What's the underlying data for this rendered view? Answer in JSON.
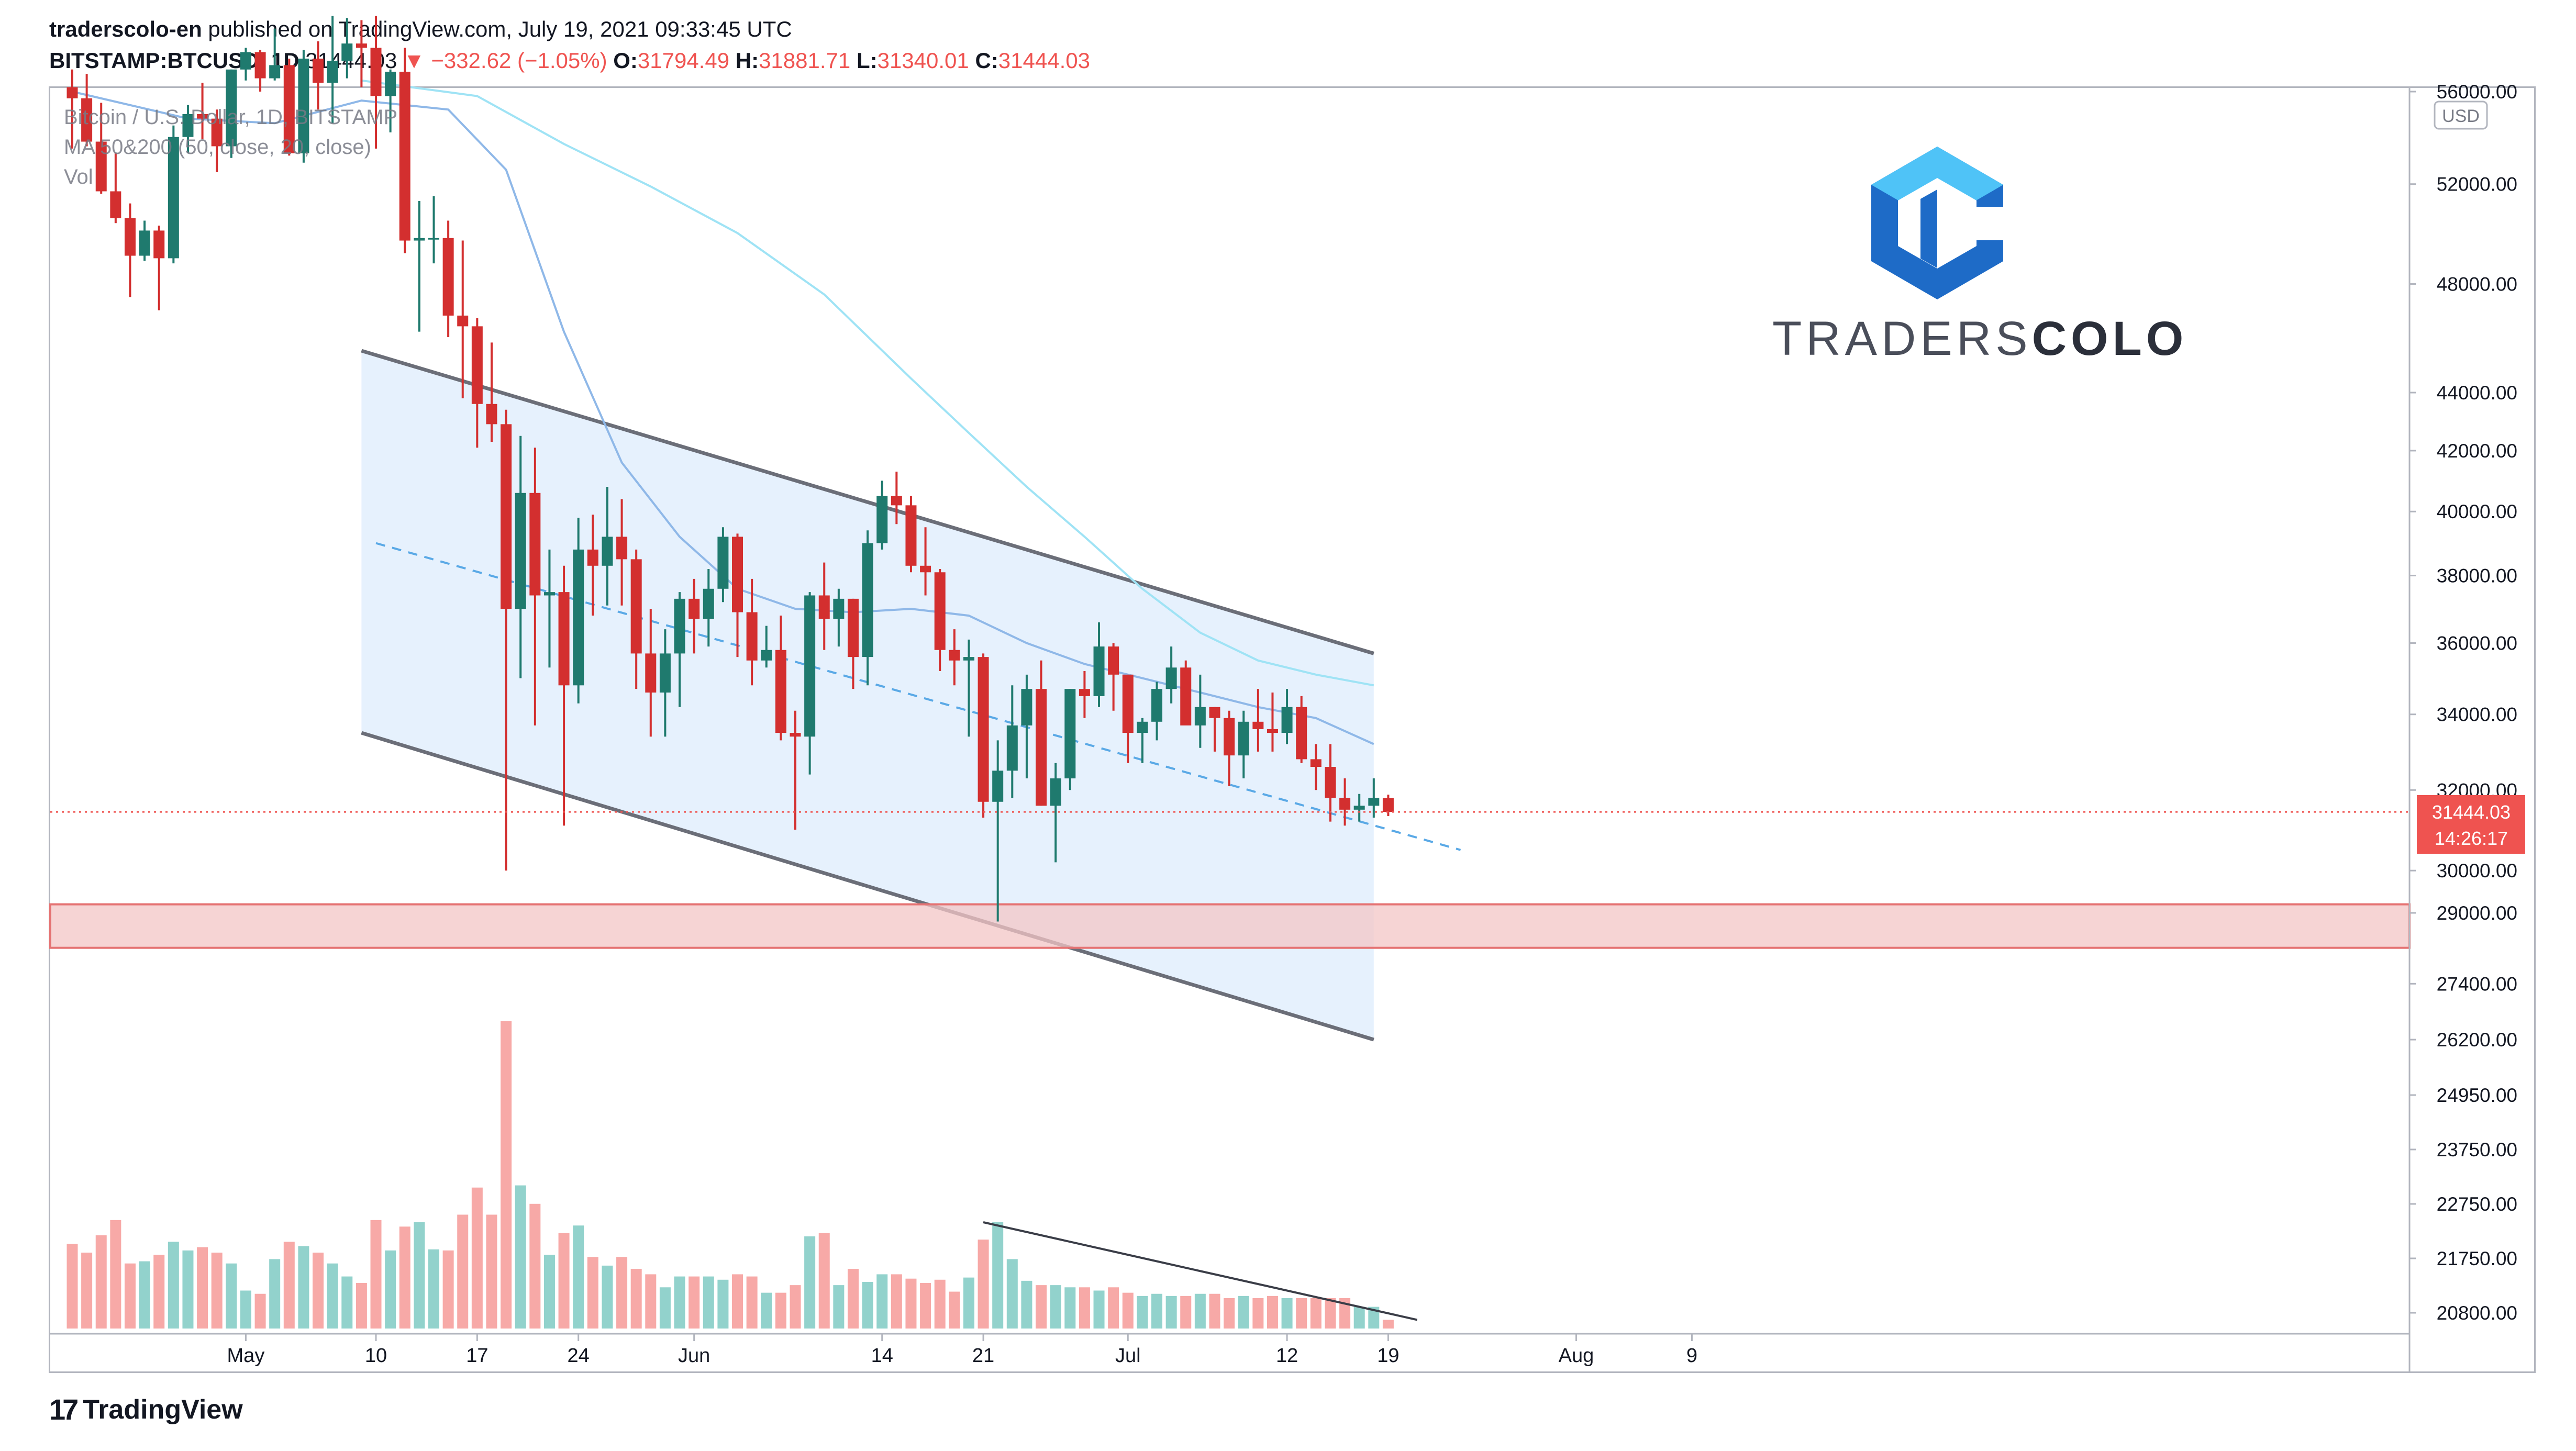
{
  "header": {
    "publisher": "traderscolo-en",
    "published_text": "published on TradingView.com, July 19, 2021 09:33:45 UTC",
    "symbol": "BITSTAMP:BTCUSD, 1D",
    "last": "31444.03",
    "change": "▼ −332.62 (−1.05%)",
    "o_label": "O:",
    "o": "31794.49",
    "h_label": "H:",
    "h": "31881.71",
    "l_label": "L:",
    "l": "31340.01",
    "c_label": "C:",
    "c": "31444.03"
  },
  "legend": {
    "title": "Bitcoin / U.S. Dollar, 1D, BITSTAMP",
    "ma": "MA 50&200 (50, close, 20, close)",
    "vol": "Vol"
  },
  "brand": {
    "name_light": "TRADERS",
    "name_bold": "COLO"
  },
  "price_axis": {
    "currency": "USD",
    "ticks": [
      "56000.00",
      "52000.00",
      "48000.00",
      "44000.00",
      "42000.00",
      "40000.00",
      "38000.00",
      "36000.00",
      "34000.00",
      "32000.00",
      "30000.00",
      "29000.00",
      "27400.00",
      "26200.00",
      "24950.00",
      "23750.00",
      "22750.00",
      "21750.00",
      "20800.00"
    ],
    "last_price": "31444.03",
    "countdown": "14:26:17"
  },
  "time_axis": {
    "ticks": [
      "May",
      "10",
      "17",
      "24",
      "Jun",
      "14",
      "21",
      "Jul",
      "12",
      "19",
      "Aug",
      "9"
    ]
  },
  "footer": {
    "logo_mark": "17",
    "logo_text": "TradingView"
  },
  "colors": {
    "up": "#26a69a",
    "down": "#ef5350",
    "up_dark": "#1f7a6e",
    "down_dark": "#d32f2f",
    "channel_fill": "#e3f0fd",
    "zone_fill": "#f3c6c6",
    "ma50": "#8fb8e8",
    "ma200": "#9fe3f5"
  },
  "chart_data": {
    "type": "candlestick",
    "symbol": "BITSTAMP:BTCUSD",
    "interval": "1D",
    "y_scale": "log",
    "ylim": [
      25800,
      57000
    ],
    "dates": [
      "2021-04-19",
      "2021-04-20",
      "2021-04-21",
      "2021-04-22",
      "2021-04-23",
      "2021-04-24",
      "2021-04-25",
      "2021-04-26",
      "2021-04-27",
      "2021-04-28",
      "2021-04-29",
      "2021-04-30",
      "2021-05-01",
      "2021-05-02",
      "2021-05-03",
      "2021-05-04",
      "2021-05-05",
      "2021-05-06",
      "2021-05-07",
      "2021-05-08",
      "2021-05-09",
      "2021-05-10",
      "2021-05-11",
      "2021-05-12",
      "2021-05-13",
      "2021-05-14",
      "2021-05-15",
      "2021-05-16",
      "2021-05-17",
      "2021-05-18",
      "2021-05-19",
      "2021-05-20",
      "2021-05-21",
      "2021-05-22",
      "2021-05-23",
      "2021-05-24",
      "2021-05-25",
      "2021-05-26",
      "2021-05-27",
      "2021-05-28",
      "2021-05-29",
      "2021-05-30",
      "2021-05-31",
      "2021-06-01",
      "2021-06-02",
      "2021-06-03",
      "2021-06-04",
      "2021-06-05",
      "2021-06-06",
      "2021-06-07",
      "2021-06-08",
      "2021-06-09",
      "2021-06-10",
      "2021-06-11",
      "2021-06-12",
      "2021-06-13",
      "2021-06-14",
      "2021-06-15",
      "2021-06-16",
      "2021-06-17",
      "2021-06-18",
      "2021-06-19",
      "2021-06-20",
      "2021-06-21",
      "2021-06-22",
      "2021-06-23",
      "2021-06-24",
      "2021-06-25",
      "2021-06-26",
      "2021-06-27",
      "2021-06-28",
      "2021-06-29",
      "2021-06-30",
      "2021-07-01",
      "2021-07-02",
      "2021-07-03",
      "2021-07-04",
      "2021-07-05",
      "2021-07-06",
      "2021-07-07",
      "2021-07-08",
      "2021-07-09",
      "2021-07-10",
      "2021-07-11",
      "2021-07-12",
      "2021-07-13",
      "2021-07-14",
      "2021-07-15",
      "2021-07-16",
      "2021-07-17",
      "2021-07-18",
      "2021-07-19"
    ],
    "ohlc": [
      [
        56200,
        57000,
        53500,
        55700
      ],
      [
        55700,
        56800,
        53600,
        53800
      ],
      [
        53800,
        55500,
        51600,
        51700
      ],
      [
        51700,
        53300,
        50400,
        50600
      ],
      [
        50600,
        51200,
        47500,
        49100
      ],
      [
        49100,
        50500,
        48900,
        50100
      ],
      [
        50100,
        50300,
        47000,
        49000
      ],
      [
        49000,
        54500,
        48800,
        54000
      ],
      [
        54000,
        55400,
        53300,
        55000
      ],
      [
        55000,
        56400,
        53900,
        54800
      ],
      [
        54800,
        55200,
        52500,
        53600
      ],
      [
        53600,
        57000,
        53100,
        57000
      ],
      [
        57000,
        58000,
        56500,
        57800
      ],
      [
        57800,
        57900,
        56000,
        56600
      ],
      [
        56600,
        58900,
        56500,
        57200
      ],
      [
        57200,
        57500,
        53200,
        53300
      ],
      [
        53300,
        57900,
        52900,
        57500
      ],
      [
        57500,
        58300,
        55200,
        56400
      ],
      [
        56400,
        59500,
        54600,
        57400
      ],
      [
        57400,
        59400,
        56600,
        58200
      ],
      [
        58200,
        59300,
        56200,
        58000
      ],
      [
        58000,
        59500,
        53500,
        55800
      ],
      [
        55800,
        57000,
        54200,
        56900
      ],
      [
        56900,
        58000,
        49200,
        49700
      ],
      [
        49700,
        51300,
        46200,
        49800
      ],
      [
        49800,
        51500,
        48800,
        49800
      ],
      [
        49800,
        50500,
        46000,
        46800
      ],
      [
        46800,
        49700,
        43800,
        46400
      ],
      [
        46400,
        46700,
        42100,
        43600
      ],
      [
        43600,
        45800,
        42300,
        42900
      ],
      [
        42900,
        43400,
        30000,
        37000
      ],
      [
        37000,
        42500,
        35000,
        40600
      ],
      [
        40600,
        42100,
        33700,
        37400
      ],
      [
        37400,
        38800,
        35300,
        37500
      ],
      [
        37500,
        38300,
        31100,
        34800
      ],
      [
        34800,
        39800,
        34300,
        38800
      ],
      [
        38800,
        39900,
        36800,
        38300
      ],
      [
        38300,
        40800,
        37100,
        39200
      ],
      [
        39200,
        40400,
        37100,
        38500
      ],
      [
        38500,
        38800,
        34700,
        35700
      ],
      [
        35700,
        37000,
        33400,
        34600
      ],
      [
        34600,
        36400,
        33400,
        35700
      ],
      [
        35700,
        37500,
        34200,
        37300
      ],
      [
        37300,
        37900,
        35700,
        36700
      ],
      [
        36700,
        38200,
        35900,
        37600
      ],
      [
        37600,
        39500,
        37200,
        39200
      ],
      [
        39200,
        39300,
        35600,
        36900
      ],
      [
        36900,
        37900,
        34800,
        35500
      ],
      [
        35500,
        36500,
        35300,
        35800
      ],
      [
        35800,
        36800,
        33300,
        33500
      ],
      [
        33500,
        34100,
        31000,
        33400
      ],
      [
        33400,
        37500,
        32400,
        37400
      ],
      [
        37400,
        38400,
        35800,
        36700
      ],
      [
        36700,
        37600,
        35900,
        37300
      ],
      [
        37300,
        37300,
        34700,
        35600
      ],
      [
        35600,
        39400,
        34800,
        39000
      ],
      [
        39000,
        41000,
        38800,
        40500
      ],
      [
        40500,
        41300,
        39600,
        40200
      ],
      [
        40200,
        40500,
        38100,
        38300
      ],
      [
        38300,
        39500,
        37400,
        38100
      ],
      [
        38100,
        38200,
        35200,
        35800
      ],
      [
        35800,
        36400,
        34800,
        35500
      ],
      [
        35500,
        36100,
        33400,
        35600
      ],
      [
        35600,
        35700,
        31300,
        31700
      ],
      [
        31700,
        33300,
        28800,
        32500
      ],
      [
        32500,
        34800,
        31800,
        33700
      ],
      [
        33700,
        35100,
        32300,
        34700
      ],
      [
        34700,
        35500,
        31600,
        31600
      ],
      [
        31600,
        32700,
        30200,
        32300
      ],
      [
        32300,
        34700,
        32000,
        34700
      ],
      [
        34700,
        35200,
        33900,
        34500
      ],
      [
        34500,
        36600,
        34200,
        35900
      ],
      [
        35900,
        36000,
        34100,
        35100
      ],
      [
        35100,
        35100,
        32700,
        33500
      ],
      [
        33500,
        33900,
        32700,
        33800
      ],
      [
        33800,
        34900,
        33300,
        34700
      ],
      [
        34700,
        35900,
        34300,
        35300
      ],
      [
        35300,
        35500,
        33800,
        33700
      ],
      [
        33700,
        35100,
        33100,
        34200
      ],
      [
        34200,
        34200,
        33000,
        33900
      ],
      [
        33900,
        34100,
        32100,
        32900
      ],
      [
        32900,
        34100,
        32300,
        33800
      ],
      [
        33800,
        34700,
        33000,
        33600
      ],
      [
        33600,
        34600,
        33000,
        33500
      ],
      [
        33500,
        34700,
        33200,
        34200
      ],
      [
        34200,
        34500,
        32700,
        32800
      ],
      [
        32800,
        33200,
        32000,
        32600
      ],
      [
        32600,
        33200,
        31200,
        31800
      ],
      [
        31800,
        32300,
        31100,
        31500
      ],
      [
        31500,
        31900,
        31200,
        31600
      ],
      [
        31600,
        32300,
        31300,
        31800
      ],
      [
        31794.49,
        31881.71,
        31340.01,
        31444.03
      ]
    ],
    "volume": [
      0.78,
      0.7,
      0.86,
      1.0,
      0.6,
      0.62,
      0.68,
      0.8,
      0.72,
      0.75,
      0.7,
      0.6,
      0.35,
      0.32,
      0.64,
      0.8,
      0.76,
      0.7,
      0.6,
      0.48,
      0.42,
      1.0,
      0.72,
      0.94,
      0.98,
      0.73,
      0.72,
      1.05,
      1.3,
      1.05,
      2.9,
      1.32,
      1.15,
      0.68,
      0.88,
      0.95,
      0.66,
      0.58,
      0.66,
      0.55,
      0.5,
      0.38,
      0.48,
      0.48,
      0.48,
      0.45,
      0.5,
      0.48,
      0.33,
      0.33,
      0.4,
      0.85,
      0.88,
      0.4,
      0.55,
      0.43,
      0.5,
      0.5,
      0.46,
      0.42,
      0.45,
      0.34,
      0.47,
      0.82,
      0.98,
      0.64,
      0.44,
      0.4,
      0.4,
      0.38,
      0.38,
      0.35,
      0.38,
      0.33,
      0.3,
      0.32,
      0.3,
      0.3,
      0.32,
      0.32,
      0.28,
      0.3,
      0.28,
      0.3,
      0.28,
      0.28,
      0.28,
      0.28,
      0.28,
      0.2,
      0.2,
      0.08
    ],
    "ma50": [
      [
        0,
        56000
      ],
      [
        8,
        54800
      ],
      [
        14,
        54600
      ],
      [
        20,
        55600
      ],
      [
        26,
        55200
      ],
      [
        30,
        52600
      ],
      [
        34,
        46200
      ],
      [
        38,
        41600
      ],
      [
        42,
        39200
      ],
      [
        46,
        37600
      ],
      [
        50,
        37000
      ],
      [
        54,
        36900
      ],
      [
        58,
        37000
      ],
      [
        62,
        36800
      ],
      [
        66,
        36000
      ],
      [
        70,
        35400
      ],
      [
        74,
        35000
      ],
      [
        78,
        34600
      ],
      [
        82,
        34200
      ],
      [
        86,
        33900
      ],
      [
        90,
        33200
      ]
    ],
    "ma200": [
      [
        20,
        56500
      ],
      [
        28,
        55800
      ],
      [
        34,
        53700
      ],
      [
        40,
        51900
      ],
      [
        46,
        50000
      ],
      [
        52,
        47600
      ],
      [
        58,
        44500
      ],
      [
        62,
        42600
      ],
      [
        66,
        40800
      ],
      [
        70,
        39200
      ],
      [
        74,
        37600
      ],
      [
        78,
        36300
      ],
      [
        82,
        35500
      ],
      [
        86,
        35100
      ],
      [
        90,
        34800
      ]
    ],
    "channel": {
      "upper": [
        [
          20,
          45500
        ],
        [
          90,
          35700
        ]
      ],
      "lower": [
        [
          20,
          33500
        ],
        [
          90,
          26200
        ]
      ],
      "midline": [
        [
          21,
          39000
        ],
        [
          96,
          30500
        ]
      ]
    },
    "support_zone": [
      28200,
      29200
    ],
    "volume_trendline": [
      [
        63,
        0.98
      ],
      [
        93,
        0.08
      ]
    ]
  }
}
